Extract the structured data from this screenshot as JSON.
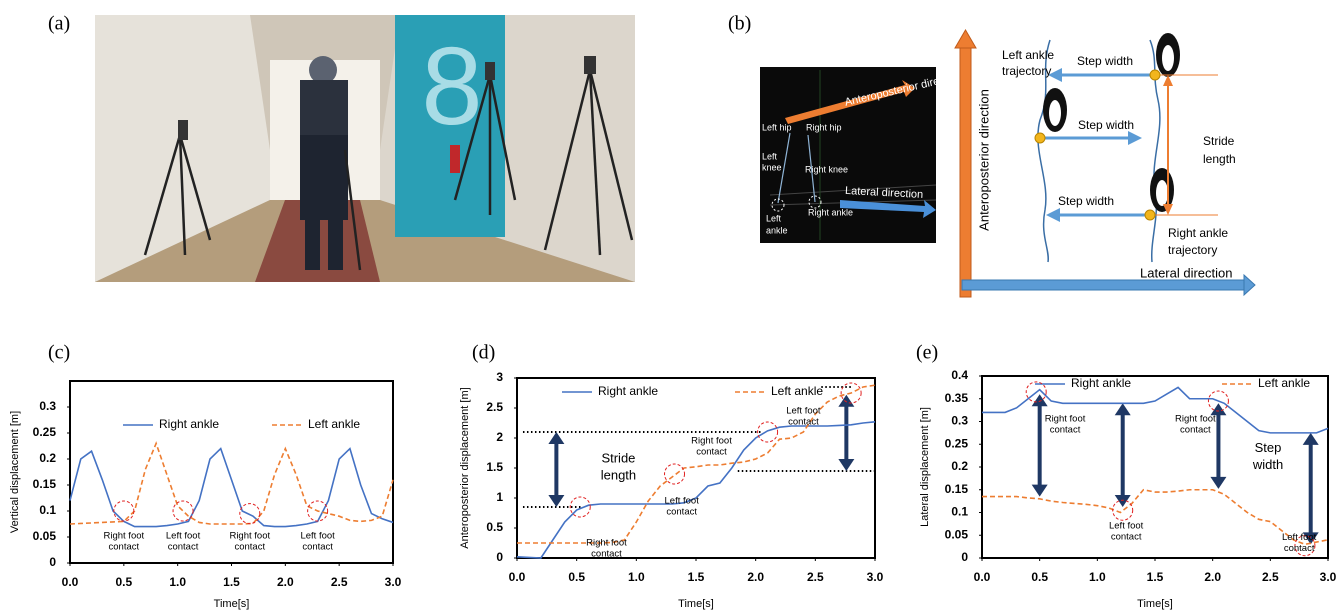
{
  "panel_labels": [
    "(a)",
    "(b)",
    "(c)",
    "(d)",
    "(e)"
  ],
  "diagram": {
    "inset": {
      "anteroposterior": "Anteroposterior direction",
      "left_hip": "Left hip",
      "right_hip": "Right hip",
      "left_knee": [
        "Left",
        "knee"
      ],
      "right_knee": "Right knee",
      "lateral": "Lateral direction",
      "left_ankle": [
        "Left",
        "ankle"
      ],
      "right_ankle": "Right ankle"
    },
    "main": {
      "anteroposterior": "Anteroposterior direction",
      "left_trajectory": [
        "Left ankle",
        "trajectory"
      ],
      "step_width": [
        "Step width",
        "Step width",
        "Step width"
      ],
      "stride_length": [
        "Stride",
        "length"
      ],
      "right_trajectory": [
        "Right ankle",
        "trajectory"
      ],
      "lateral": "Lateral direction"
    }
  },
  "chart_data": [
    {
      "type": "line",
      "xlabel": "Time[s]",
      "ylabel": "Vertical displacement [m]",
      "x": [
        0,
        0.1,
        0.2,
        0.3,
        0.4,
        0.5,
        0.6,
        0.7,
        0.8,
        0.9,
        1,
        1.1,
        1.2,
        1.3,
        1.4,
        1.5,
        1.6,
        1.7,
        1.8,
        1.9,
        2,
        2.1,
        2.2,
        2.3,
        2.4,
        2.5,
        2.6,
        2.7,
        2.8,
        2.9,
        3
      ],
      "series": [
        {
          "name": "Right ankle",
          "color": "#4472c4",
          "line_style": "solid",
          "values": [
            0.12,
            0.2,
            0.215,
            0.16,
            0.1,
            0.08,
            0.07,
            0.07,
            0.07,
            0.072,
            0.075,
            0.08,
            0.12,
            0.2,
            0.22,
            0.16,
            0.1,
            0.09,
            0.072,
            0.07,
            0.07,
            0.072,
            0.075,
            0.08,
            0.12,
            0.2,
            0.22,
            0.15,
            0.095,
            0.085,
            0.078
          ]
        },
        {
          "name": "Left ankle",
          "color": "#ed7d31",
          "line_style": "dashed",
          "values": [
            0.075,
            0.076,
            0.077,
            0.078,
            0.079,
            0.08,
            0.1,
            0.18,
            0.23,
            0.17,
            0.11,
            0.09,
            0.078,
            0.075,
            0.075,
            0.075,
            0.075,
            0.076,
            0.1,
            0.17,
            0.22,
            0.17,
            0.11,
            0.1,
            0.095,
            0.09,
            0.082,
            0.08,
            0.082,
            0.09,
            0.16
          ]
        }
      ],
      "xlim": [
        0,
        3
      ],
      "xticks": [
        {
          "value": 0,
          "label": "0.0"
        },
        {
          "value": 0.5,
          "label": "0.5"
        },
        {
          "value": 1,
          "label": "1.0"
        },
        {
          "value": 1.5,
          "label": "1.5"
        },
        {
          "value": 2,
          "label": "2.0"
        },
        {
          "value": 2.5,
          "label": "2.5"
        },
        {
          "value": 3,
          "label": "3.0"
        }
      ],
      "ylim": [
        0,
        0.35
      ],
      "yticks": [
        0,
        0.05,
        0.1,
        0.15,
        0.2,
        0.25,
        0.3
      ],
      "annotations": [
        [
          "Right foot",
          "contact"
        ],
        [
          "Left foot",
          "contact"
        ],
        [
          "Right foot",
          "contact"
        ],
        [
          "Left foot",
          "contact"
        ]
      ]
    },
    {
      "type": "line",
      "xlabel": "Time[s]",
      "ylabel": "Anteroposterior displacement [m]",
      "x": [
        0,
        0.1,
        0.2,
        0.3,
        0.4,
        0.5,
        0.6,
        0.7,
        0.8,
        0.9,
        1,
        1.1,
        1.2,
        1.3,
        1.4,
        1.5,
        1.6,
        1.7,
        1.8,
        1.9,
        2,
        2.1,
        2.2,
        2.3,
        2.4,
        2.5,
        2.6,
        2.7,
        2.8,
        2.9,
        3
      ],
      "series": [
        {
          "name": "Right ankle",
          "color": "#4472c4",
          "line_style": "solid",
          "values": [
            0.02,
            0.01,
            0.0,
            0.3,
            0.6,
            0.8,
            0.88,
            0.9,
            0.9,
            0.9,
            0.9,
            0.9,
            0.9,
            0.9,
            0.92,
            1.0,
            1.2,
            1.25,
            1.5,
            1.8,
            2.0,
            2.12,
            2.18,
            2.2,
            2.2,
            2.2,
            2.2,
            2.21,
            2.22,
            2.25,
            2.27
          ]
        },
        {
          "name": "Left ankle",
          "color": "#ed7d31",
          "line_style": "dashed",
          "values": [
            0.25,
            0.25,
            0.25,
            0.25,
            0.25,
            0.25,
            0.25,
            0.25,
            0.26,
            0.3,
            0.6,
            0.95,
            1.2,
            1.35,
            1.5,
            1.52,
            1.55,
            1.55,
            1.58,
            1.6,
            1.65,
            1.75,
            1.98,
            2.0,
            2.1,
            2.4,
            2.6,
            2.7,
            2.75,
            2.85,
            2.88
          ]
        }
      ],
      "xlim": [
        0,
        3
      ],
      "xticks": [
        {
          "value": 0,
          "label": "0.0"
        },
        {
          "value": 0.5,
          "label": "0.5"
        },
        {
          "value": 1,
          "label": "1.0"
        },
        {
          "value": 1.5,
          "label": "1.5"
        },
        {
          "value": 2,
          "label": "2.0"
        },
        {
          "value": 2.5,
          "label": "2.5"
        },
        {
          "value": 3,
          "label": "3.0"
        }
      ],
      "ylim": [
        0,
        3
      ],
      "yticks": [
        0,
        0.5,
        1,
        1.5,
        2,
        2.5,
        3
      ],
      "annotations": [
        [
          "Stride",
          "length"
        ],
        [
          "Right foot",
          "contact"
        ],
        [
          "Left foot",
          "contact"
        ],
        [
          "Right foot",
          "contact"
        ],
        [
          "Left foot",
          "contact"
        ]
      ]
    },
    {
      "type": "line",
      "xlabel": "Time[s]",
      "ylabel": "Lateral displacement [m]",
      "x": [
        0,
        0.1,
        0.2,
        0.3,
        0.4,
        0.5,
        0.6,
        0.7,
        0.8,
        0.9,
        1,
        1.1,
        1.2,
        1.3,
        1.4,
        1.5,
        1.6,
        1.7,
        1.8,
        1.9,
        2,
        2.1,
        2.2,
        2.3,
        2.4,
        2.5,
        2.6,
        2.7,
        2.8,
        2.9,
        3
      ],
      "series": [
        {
          "name": "Right ankle",
          "color": "#4472c4",
          "line_style": "solid",
          "values": [
            0.32,
            0.32,
            0.32,
            0.33,
            0.35,
            0.37,
            0.345,
            0.34,
            0.34,
            0.34,
            0.34,
            0.34,
            0.34,
            0.34,
            0.34,
            0.345,
            0.36,
            0.375,
            0.35,
            0.35,
            0.35,
            0.34,
            0.32,
            0.3,
            0.28,
            0.275,
            0.275,
            0.275,
            0.275,
            0.275,
            0.285
          ]
        },
        {
          "name": "Left ankle",
          "color": "#ed7d31",
          "line_style": "dashed",
          "values": [
            0.135,
            0.135,
            0.135,
            0.135,
            0.132,
            0.13,
            0.125,
            0.122,
            0.12,
            0.118,
            0.115,
            0.11,
            0.1,
            0.12,
            0.15,
            0.145,
            0.145,
            0.147,
            0.15,
            0.15,
            0.15,
            0.14,
            0.12,
            0.1,
            0.085,
            0.08,
            0.06,
            0.04,
            0.03,
            0.035,
            0.04
          ]
        }
      ],
      "xlim": [
        0,
        3
      ],
      "xticks": [
        {
          "value": 0,
          "label": "0.0"
        },
        {
          "value": 0.5,
          "label": "0.5"
        },
        {
          "value": 1,
          "label": "1.0"
        },
        {
          "value": 1.5,
          "label": "1.5"
        },
        {
          "value": 2,
          "label": "2.0"
        },
        {
          "value": 2.5,
          "label": "2.5"
        },
        {
          "value": 3,
          "label": "3.0"
        }
      ],
      "ylim": [
        0,
        0.4
      ],
      "yticks": [
        0,
        0.05,
        0.1,
        0.15,
        0.2,
        0.25,
        0.3,
        0.35,
        0.4
      ],
      "annotations": [
        [
          "Right foot",
          "contact"
        ],
        [
          "Left foot",
          "contact"
        ],
        [
          "Right foot",
          "contact"
        ],
        [
          "Step",
          "width"
        ],
        [
          "Left foot",
          "contact"
        ]
      ]
    }
  ]
}
